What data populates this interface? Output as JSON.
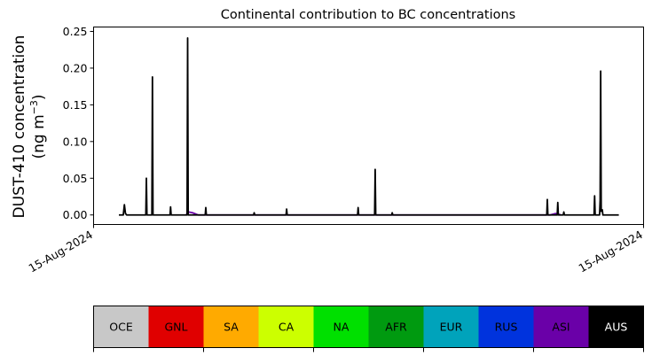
{
  "chart_data": {
    "type": "line",
    "title": "Continental contribution to BC concentrations",
    "ylabel_line1": "DUST-410 concentration",
    "ylabel_line2": "(ng m",
    "ylabel_sup": "−3",
    "ylabel_end": ")",
    "xlabel": "",
    "ylim": [
      -0.013,
      0.256
    ],
    "xlim": [
      0,
      100
    ],
    "yticks": [
      "0.00",
      "0.05",
      "0.10",
      "0.15",
      "0.20",
      "0.25"
    ],
    "ytick_values": [
      0,
      0.05,
      0.1,
      0.15,
      0.2,
      0.25
    ],
    "xtick_labels": [
      "15-Aug-2024",
      "15-Aug-2024"
    ],
    "xtick_values": [
      0,
      100
    ],
    "grid": false,
    "series": [
      {
        "color": "#000000",
        "points": [
          [
            4.6,
            0
          ],
          [
            5.4,
            0
          ],
          [
            5.6,
            0.014
          ],
          [
            5.8,
            0.002
          ],
          [
            6.0,
            0
          ],
          [
            9.5,
            0
          ],
          [
            9.6,
            0.05
          ],
          [
            9.7,
            0
          ],
          [
            10.6,
            0
          ],
          [
            10.7,
            0.188
          ],
          [
            10.8,
            0
          ],
          [
            13.9,
            0
          ],
          [
            14.0,
            0.011
          ],
          [
            14.1,
            0
          ],
          [
            17.0,
            0
          ],
          [
            17.1,
            0.241
          ],
          [
            17.2,
            0
          ],
          [
            20.3,
            0
          ],
          [
            20.4,
            0.01
          ],
          [
            20.5,
            0
          ],
          [
            29.1,
            0
          ],
          [
            29.2,
            0.003
          ],
          [
            29.3,
            0
          ],
          [
            35.0,
            0
          ],
          [
            35.1,
            0.008
          ],
          [
            35.2,
            0
          ],
          [
            48.0,
            0
          ],
          [
            48.1,
            0.01
          ],
          [
            48.2,
            0
          ],
          [
            51.1,
            0
          ],
          [
            51.2,
            0.062
          ],
          [
            51.3,
            0
          ],
          [
            54.2,
            0
          ],
          [
            54.3,
            0.003
          ],
          [
            54.4,
            0
          ],
          [
            82.4,
            0
          ],
          [
            82.5,
            0.021
          ],
          [
            82.6,
            0
          ],
          [
            84.3,
            0
          ],
          [
            84.4,
            0.017
          ],
          [
            84.5,
            0
          ],
          [
            85.4,
            0
          ],
          [
            85.5,
            0.004
          ],
          [
            85.6,
            0
          ],
          [
            91.0,
            0
          ],
          [
            91.1,
            0.026
          ],
          [
            91.2,
            0
          ],
          [
            92.0,
            0
          ],
          [
            92.1,
            0.02
          ],
          [
            92.2,
            0.196
          ],
          [
            92.3,
            0.005
          ],
          [
            92.5,
            0.007
          ],
          [
            92.6,
            0
          ],
          [
            95.5,
            0
          ]
        ]
      },
      {
        "color": "#6a00a8",
        "points": [
          [
            16.8,
            0
          ],
          [
            17.3,
            0.004
          ],
          [
            18.0,
            0.003
          ],
          [
            19.0,
            0
          ],
          [
            83.0,
            0
          ],
          [
            84.0,
            0.002
          ],
          [
            85.0,
            0
          ]
        ]
      }
    ],
    "legend": {
      "placement": "bottom",
      "entries": [
        {
          "label": "OCE",
          "color": "#c8c8c8",
          "text_color": "#000000"
        },
        {
          "label": "GNL",
          "color": "#e00000",
          "text_color": "#000000"
        },
        {
          "label": "SA",
          "color": "#ffaa00",
          "text_color": "#000000"
        },
        {
          "label": "CA",
          "color": "#ccff00",
          "text_color": "#000000"
        },
        {
          "label": "NA",
          "color": "#00e000",
          "text_color": "#000000"
        },
        {
          "label": "AFR",
          "color": "#009a10",
          "text_color": "#000000"
        },
        {
          "label": "EUR",
          "color": "#00a3bb",
          "text_color": "#000000"
        },
        {
          "label": "RUS",
          "color": "#0033dd",
          "text_color": "#000000"
        },
        {
          "label": "ASI",
          "color": "#6a00a8",
          "text_color": "#000000"
        },
        {
          "label": "AUS",
          "color": "#000000",
          "text_color": "#ffffff"
        }
      ]
    }
  }
}
